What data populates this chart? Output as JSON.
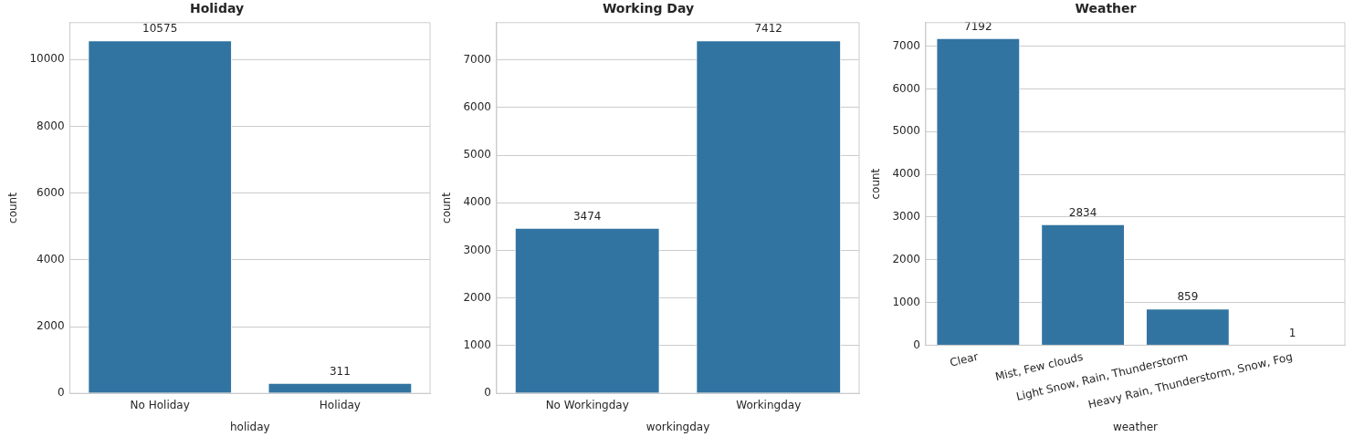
{
  "chart_data": [
    {
      "type": "bar",
      "title": "Holiday",
      "xlabel": "holiday",
      "ylabel": "count",
      "categories": [
        "No Holiday",
        "Holiday"
      ],
      "values": [
        10575,
        311
      ],
      "color": "#3274a1",
      "ylim": [
        0,
        11104
      ],
      "yticks": [
        0,
        2000,
        4000,
        6000,
        8000,
        10000
      ],
      "grid": "y",
      "data_labels": true,
      "legend": false
    },
    {
      "type": "bar",
      "title": "Working Day",
      "xlabel": "workingday",
      "ylabel": "count",
      "categories": [
        "No Workingday",
        "Workingday"
      ],
      "values": [
        3474,
        7412
      ],
      "color": "#3274a1",
      "ylim": [
        0,
        7783
      ],
      "yticks": [
        0,
        1000,
        2000,
        3000,
        4000,
        5000,
        6000,
        7000
      ],
      "grid": "y",
      "data_labels": true,
      "legend": false
    },
    {
      "type": "bar",
      "title": "Weather",
      "xlabel": "weather",
      "ylabel": "count",
      "categories": [
        "Clear",
        "Mist, Few clouds",
        "Light Snow, Rain, Thunderstorm",
        "Heavy Rain, Thunderstorm, Snow, Fog"
      ],
      "values": [
        7192,
        2834,
        859,
        1
      ],
      "color": "#3274a1",
      "ylim": [
        0,
        7552
      ],
      "yticks": [
        0,
        1000,
        2000,
        3000,
        4000,
        5000,
        6000,
        7000
      ],
      "grid": "y",
      "data_labels": true,
      "legend": false
    }
  ]
}
